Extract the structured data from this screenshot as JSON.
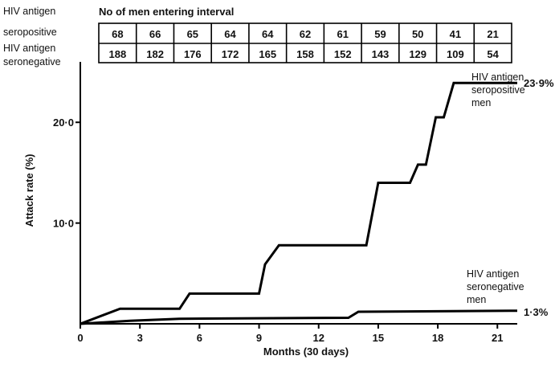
{
  "table": {
    "title": "No of men entering interval",
    "rows": [
      {
        "label_line1": "HIV antigen",
        "label_line2": "seropositive",
        "values": [
          "68",
          "66",
          "65",
          "64",
          "64",
          "62",
          "61",
          "59",
          "50",
          "41",
          "21"
        ]
      },
      {
        "label_line1": "HIV antigen",
        "label_line2": "seronegative",
        "values": [
          "188",
          "182",
          "176",
          "172",
          "165",
          "158",
          "152",
          "143",
          "129",
          "109",
          "54"
        ]
      }
    ]
  },
  "chart_data": {
    "type": "line",
    "title": "",
    "xlabel": "Months (30 days)",
    "ylabel": "Attack rate (%)",
    "xlim": [
      0,
      22
    ],
    "ylim": [
      0,
      26
    ],
    "xticks": [
      0,
      3,
      6,
      9,
      12,
      15,
      18,
      21
    ],
    "xtick_labels": [
      "0",
      "3",
      "6",
      "9",
      "12",
      "15",
      "18",
      "21"
    ],
    "yticks": [
      10,
      20
    ],
    "ytick_labels": [
      "10·0",
      "20·0"
    ],
    "grid": false,
    "series": [
      {
        "name_line1": "HIV antigen",
        "name_line2": "seropositive",
        "name_line3": "men",
        "end_label": "23·9%",
        "color": "#000000",
        "points": [
          [
            0,
            0
          ],
          [
            2,
            1.5
          ],
          [
            5,
            1.5
          ],
          [
            5.5,
            3.0
          ],
          [
            9,
            3.0
          ],
          [
            9.3,
            5.9
          ],
          [
            10,
            7.8
          ],
          [
            14.4,
            7.8
          ],
          [
            15,
            14.0
          ],
          [
            16.6,
            14.0
          ],
          [
            17,
            15.8
          ],
          [
            17.4,
            15.8
          ],
          [
            17.9,
            20.5
          ],
          [
            18.3,
            20.5
          ],
          [
            18.8,
            23.9
          ],
          [
            22,
            23.9
          ]
        ]
      },
      {
        "name_line1": "HIV antigen",
        "name_line2": "seronegative",
        "name_line3": "men",
        "end_label": "1·3%",
        "color": "#000000",
        "points": [
          [
            0,
            0
          ],
          [
            2.5,
            0.3
          ],
          [
            5,
            0.5
          ],
          [
            13.5,
            0.6
          ],
          [
            14,
            1.2
          ],
          [
            22,
            1.3
          ]
        ]
      }
    ]
  }
}
